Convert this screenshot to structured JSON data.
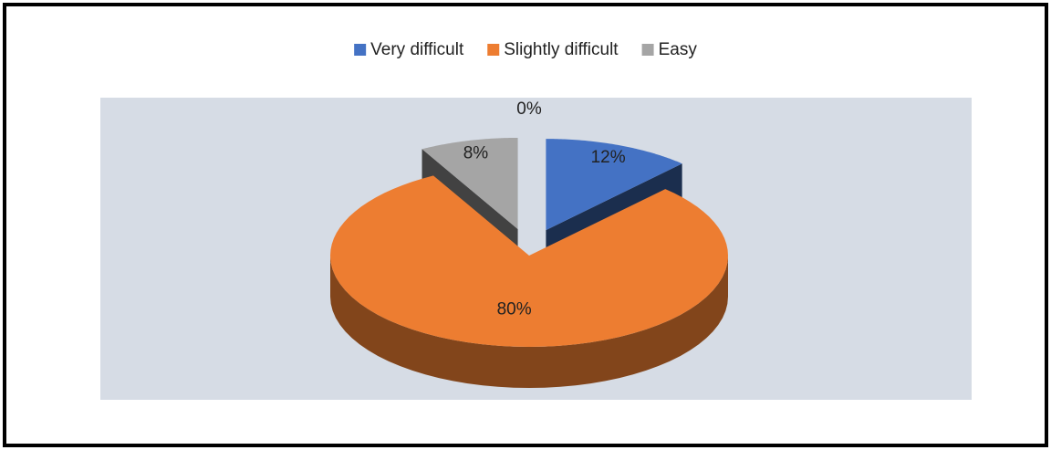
{
  "chart_data": {
    "type": "pie",
    "categories": [
      "Very difficult",
      "Slightly difficult",
      "Easy",
      null
    ],
    "values": [
      12,
      80,
      8,
      0
    ],
    "value_labels": [
      "12%",
      "80%",
      "8%",
      "0%"
    ],
    "colors": [
      "#4472c4",
      "#ed7d31",
      "#a5a5a5",
      "#ffc000"
    ],
    "legend": "top"
  }
}
